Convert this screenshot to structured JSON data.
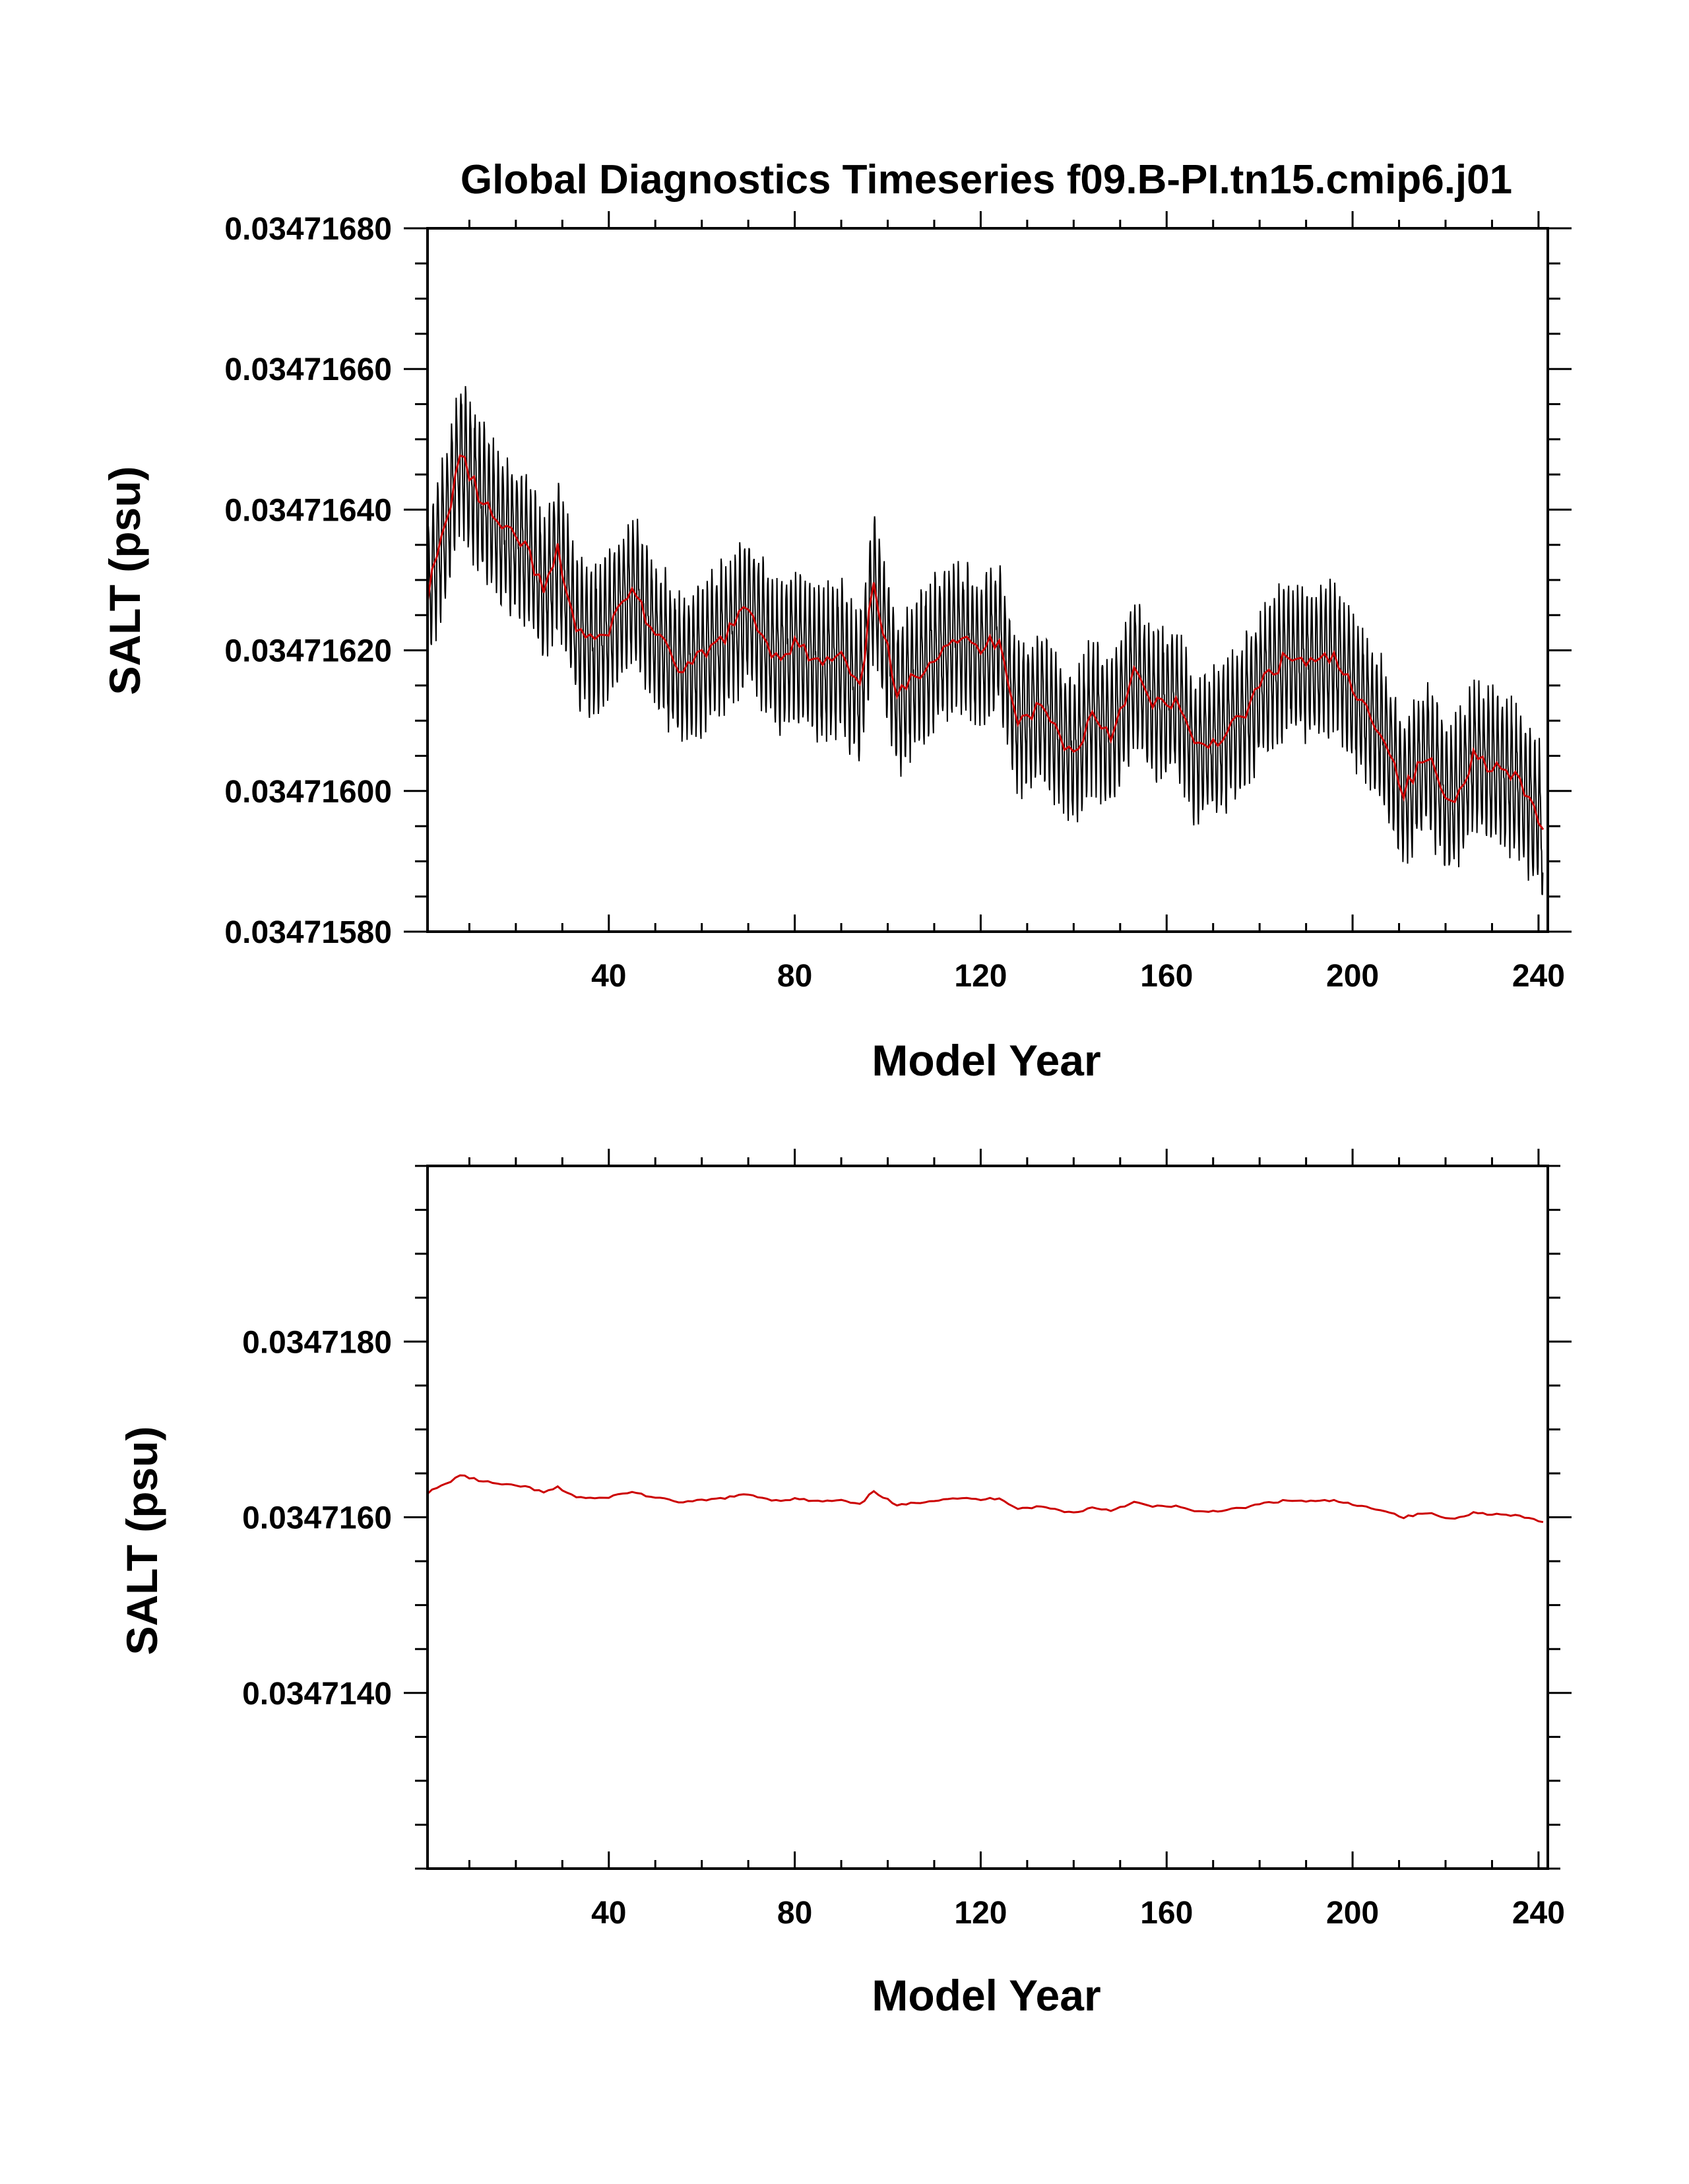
{
  "colors": {
    "monthly_series": "#000000",
    "annual_series": "#cc0000",
    "axes": "#000000",
    "background": "#ffffff"
  },
  "chart_data": [
    {
      "type": "line",
      "title": "Global Diagnostics Timeseries f09.B-PI.tn15.cmip6.j01",
      "xlabel": "Model Year",
      "ylabel": "SALT (psu)",
      "xlim": [
        1,
        242
      ],
      "ylim": [
        0.0347158,
        0.0347168
      ],
      "x_ticks": [
        40,
        80,
        120,
        160,
        200,
        240
      ],
      "x_tick_labels": [
        "40",
        "80",
        "120",
        "160",
        "200",
        "240"
      ],
      "y_ticks": [
        0.0347158,
        0.034716,
        0.0347162,
        0.0347164,
        0.0347166,
        0.0347168
      ],
      "y_tick_labels": [
        "0.03471580",
        "0.03471600",
        "0.03471620",
        "0.03471640",
        "0.03471660",
        "0.03471680"
      ],
      "grid": false,
      "legend": "none",
      "series": [
        {
          "kind": "monthly",
          "color": "#000000",
          "annual_cycle_amplitude": 1e-07,
          "x": [
            1,
            241
          ],
          "base": "annual_mean_of_panel_1"
        },
        {
          "kind": "annual-mean",
          "color": "#cc0000",
          "x": [
            1,
            5,
            8,
            12,
            17,
            22,
            26,
            29,
            33,
            38,
            45,
            50,
            56,
            62,
            70,
            76,
            80,
            85,
            90,
            94,
            97,
            102,
            108,
            114,
            120,
            124,
            128,
            133,
            137,
            140,
            144,
            148,
            153,
            157,
            162,
            166,
            170,
            176,
            181,
            186,
            192,
            196,
            201,
            206,
            211,
            216,
            221,
            226,
            232,
            236,
            241
          ],
          "y": [
            0.03471628,
            0.03471638,
            0.03471648,
            0.03471642,
            0.03471637,
            0.03471635,
            0.03471628,
            0.03471634,
            0.03471623,
            0.03471621,
            0.03471629,
            0.03471622,
            0.03471617,
            0.0347162,
            0.03471626,
            0.03471619,
            0.03471621,
            0.03471618,
            0.03471619,
            0.03471614,
            0.0347163,
            0.03471613,
            0.03471618,
            0.03471622,
            0.0347162,
            0.03471622,
            0.0347161,
            0.03471612,
            0.03471608,
            0.03471605,
            0.03471611,
            0.03471608,
            0.03471617,
            0.03471612,
            0.03471613,
            0.03471606,
            0.03471607,
            0.0347161,
            0.03471616,
            0.03471619,
            0.03471618,
            0.03471619,
            0.03471613,
            0.03471609,
            0.034716,
            0.03471605,
            0.03471598,
            0.03471605,
            0.03471603,
            0.03471601,
            0.03471595
          ]
        }
      ]
    },
    {
      "type": "line",
      "xlabel": "Model Year",
      "ylabel": "SALT (psu)",
      "xlim": [
        1,
        242
      ],
      "ylim": [
        0.034712,
        0.03472
      ],
      "x_ticks": [
        40,
        80,
        120,
        160,
        200,
        240
      ],
      "x_tick_labels": [
        "40",
        "80",
        "120",
        "160",
        "200",
        "240"
      ],
      "y_ticks": [
        0.034714,
        0.034716,
        0.034718
      ],
      "y_tick_labels": [
        "0.0347140",
        "0.0347160",
        "0.0347180"
      ],
      "grid": false,
      "legend": "none",
      "series": [
        {
          "kind": "annual-mean",
          "color": "#cc0000",
          "x": "same_as_panel_1_annual",
          "y": "same_as_panel_1_annual"
        }
      ]
    }
  ]
}
